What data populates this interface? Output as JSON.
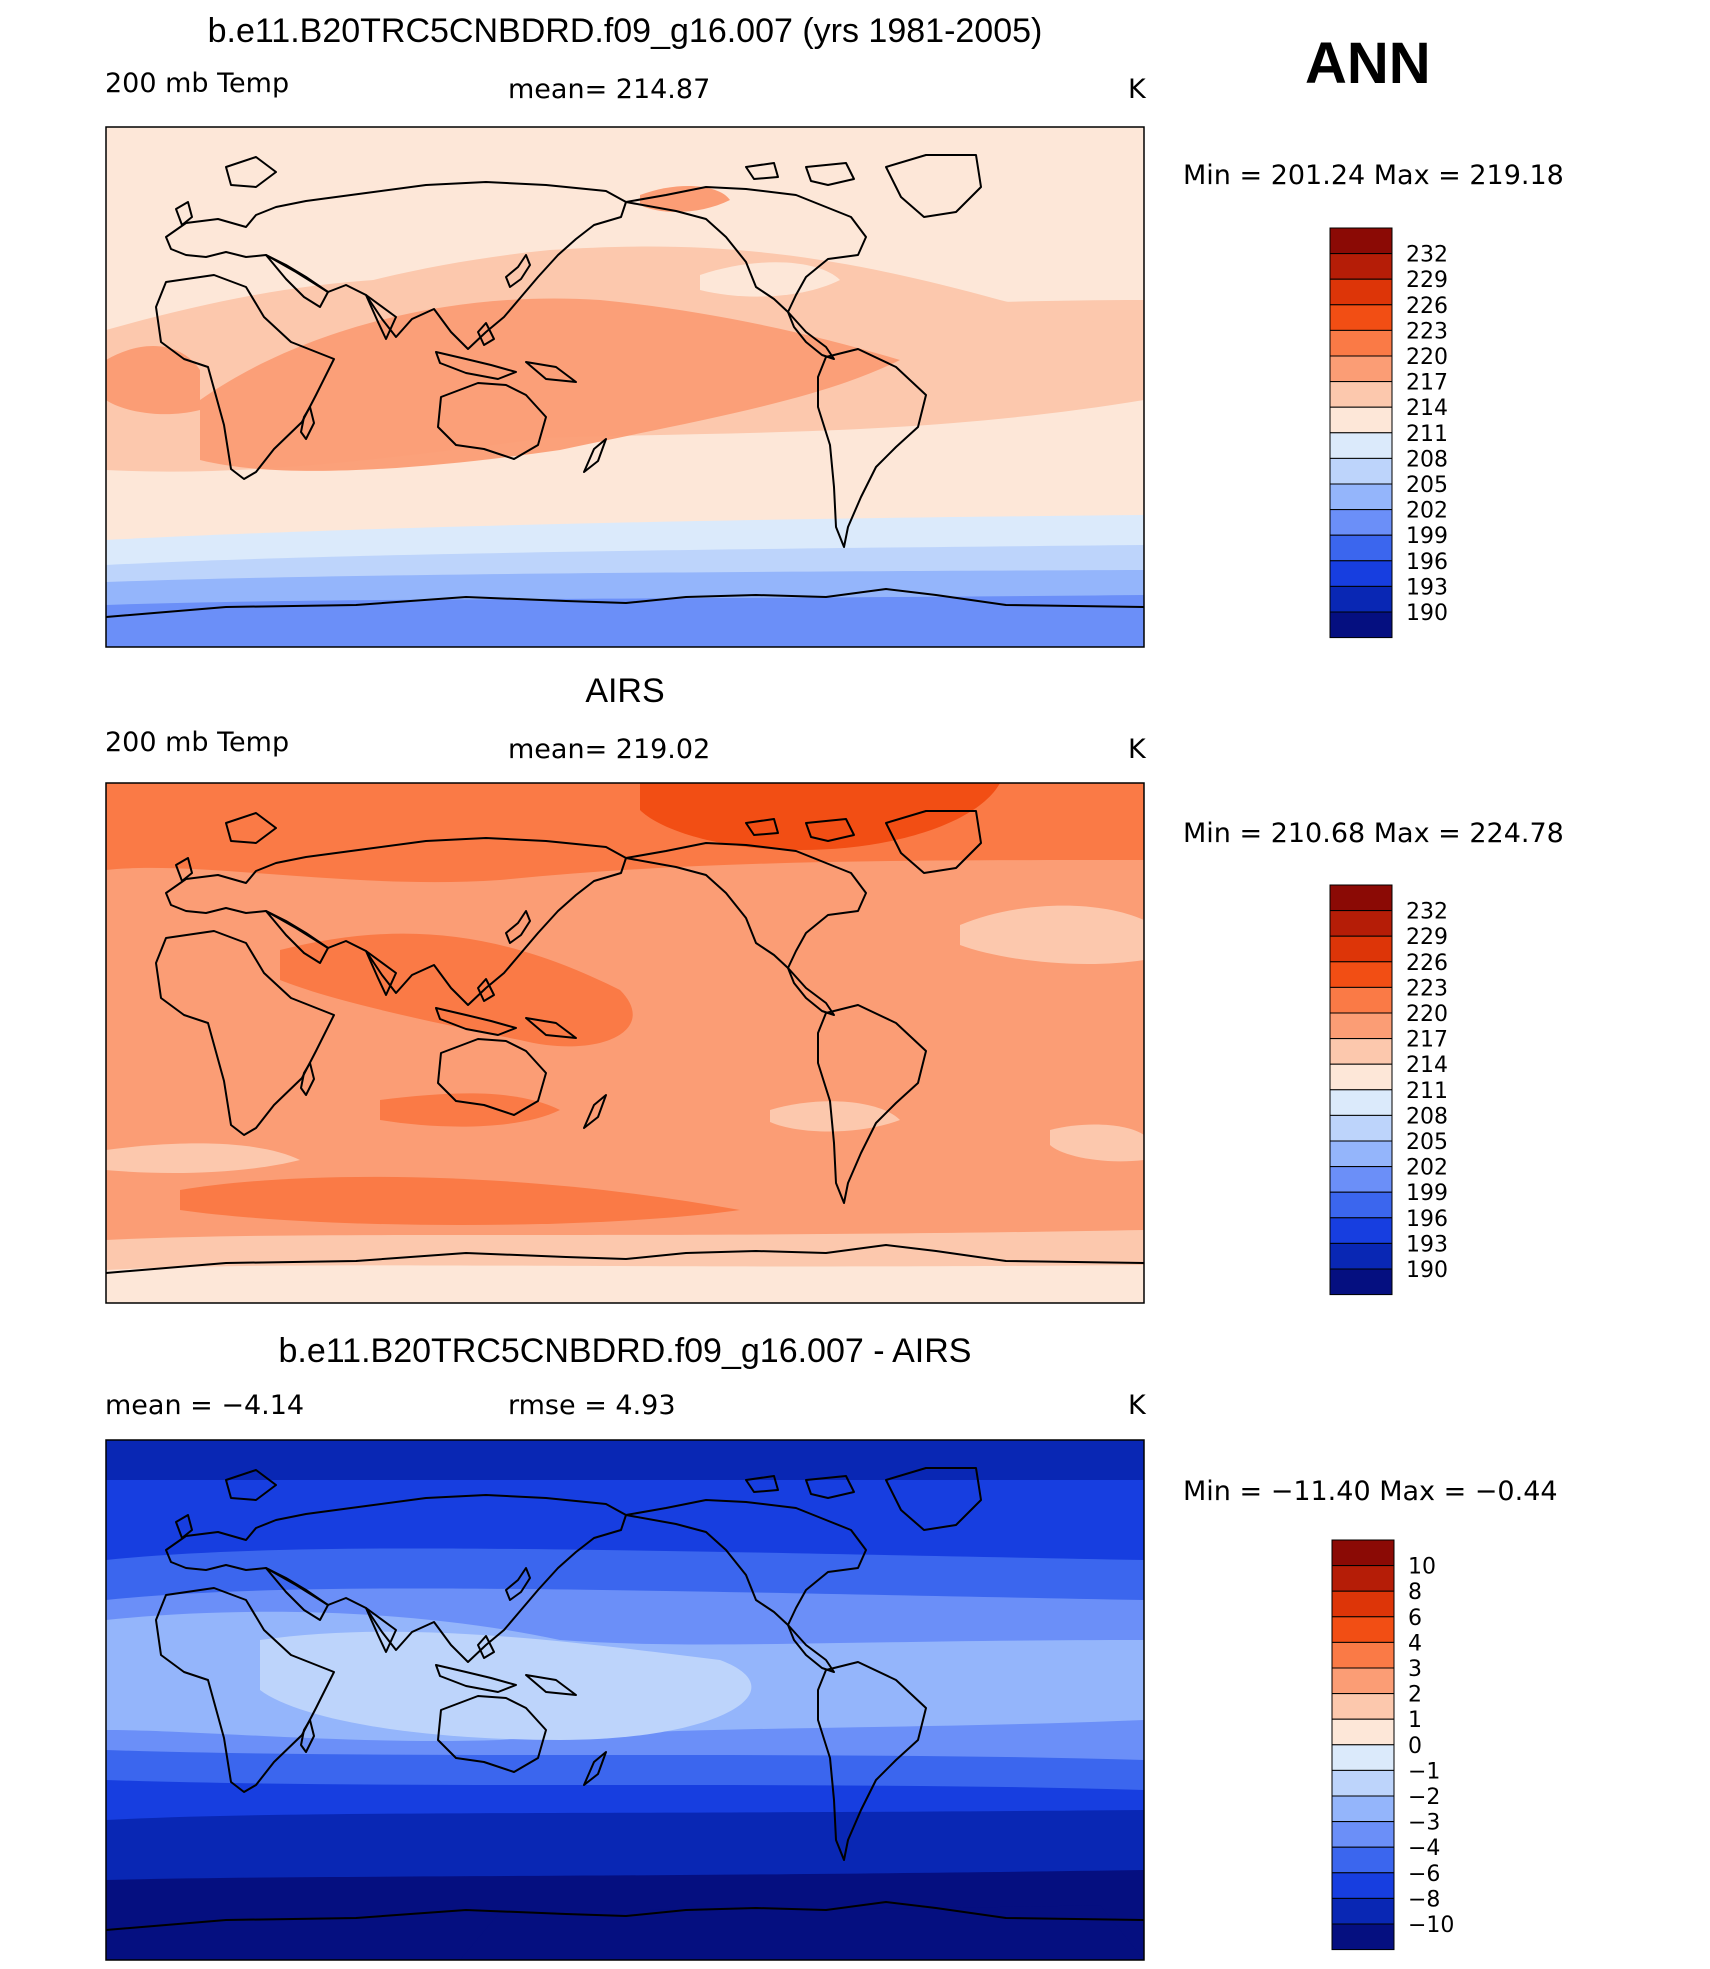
{
  "season": "ANN",
  "panels": [
    {
      "title": "b.e11.B20TRC5CNBDRD.f09_g16.007 (yrs 1981-2005)",
      "left_label": "200 mb Temp",
      "center_label": "mean=  214.87",
      "units": "K",
      "minmax": "Min  =  201.24  Max  =  219.18",
      "colorbar_labels": [
        "232",
        "229",
        "226",
        "223",
        "220",
        "217",
        "214",
        "211",
        "208",
        "205",
        "202",
        "199",
        "196",
        "193",
        "190"
      ],
      "colorbar_colors": [
        "#8b0a05",
        "#b51d07",
        "#dd3508",
        "#f24e14",
        "#fa7a46",
        "#fb9d75",
        "#fcc8ad",
        "#fde7d8",
        "#dbeafb",
        "#bdd4fb",
        "#94b5fb",
        "#6b8ff8",
        "#3b66ee",
        "#173ee0",
        "#0927b4",
        "#050f80"
      ]
    },
    {
      "title": "AIRS",
      "left_label": "200 mb Temp",
      "center_label": "mean=  219.02",
      "units": "K",
      "minmax": "Min  =  210.68  Max  =  224.78",
      "colorbar_labels": [
        "232",
        "229",
        "226",
        "223",
        "220",
        "217",
        "214",
        "211",
        "208",
        "205",
        "202",
        "199",
        "196",
        "193",
        "190"
      ],
      "colorbar_colors": [
        "#8b0a05",
        "#b51d07",
        "#dd3508",
        "#f24e14",
        "#fa7a46",
        "#fb9d75",
        "#fcc8ad",
        "#fde7d8",
        "#dbeafb",
        "#bdd4fb",
        "#94b5fb",
        "#6b8ff8",
        "#3b66ee",
        "#173ee0",
        "#0927b4",
        "#050f80"
      ]
    },
    {
      "title": "b.e11.B20TRC5CNBDRD.f09_g16.007 - AIRS",
      "left_label": "mean  =    −4.14",
      "center_label": "rmse  =     4.93",
      "units": "K",
      "minmax": "Min  =  −11.40  Max  =   −0.44",
      "colorbar_labels": [
        "10",
        "8",
        "6",
        "4",
        "3",
        "2",
        "1",
        "0",
        "−1",
        "−2",
        "−3",
        "−4",
        "−6",
        "−8",
        "−10"
      ],
      "colorbar_colors": [
        "#8b0a05",
        "#b51d07",
        "#dd3508",
        "#f24e14",
        "#fa7a46",
        "#fb9d75",
        "#fcc8ad",
        "#fde7d8",
        "#dbeafb",
        "#bdd4fb",
        "#94b5fb",
        "#6b8ff8",
        "#3b66ee",
        "#173ee0",
        "#0927b4",
        "#050f80"
      ]
    }
  ]
}
